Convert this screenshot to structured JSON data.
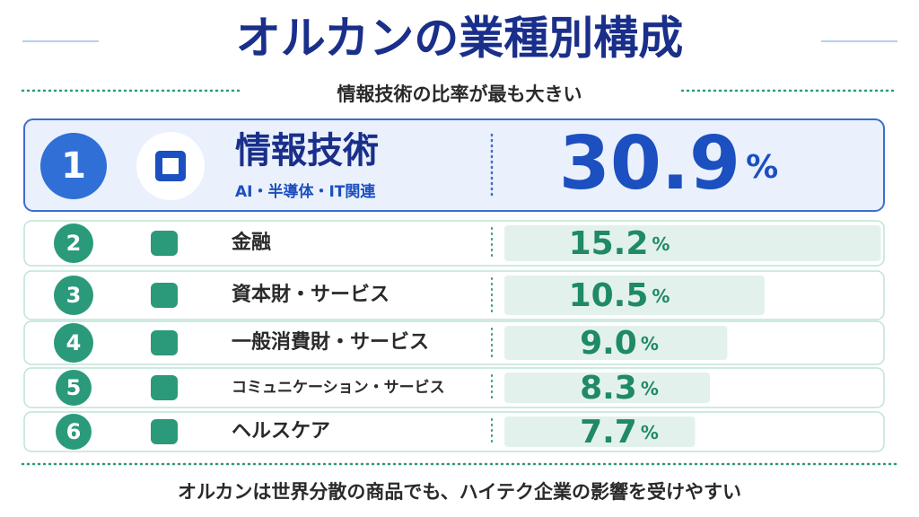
{
  "chart_data": {
    "type": "bar",
    "title": "オルカンの業種別構成",
    "subtitle": "情報技術の比率が最も大きい",
    "caption": "オルカンは世界分散の商品でも、ハイテク企業の影響を受けやすい",
    "ranks": [
      1,
      2,
      3,
      4,
      5,
      6
    ],
    "categories": [
      "情報技術",
      "金融",
      "資本財・サービス",
      "一般消費財・サービス",
      "コミュニケーション・サービス",
      "ヘルスケア"
    ],
    "highlight_note": "AI・半導体・IT関連",
    "values": [
      30.9,
      15.2,
      10.5,
      9.0,
      8.3,
      7.7
    ],
    "value_labels": [
      "30.9",
      "15.2",
      "10.5",
      "9.0",
      "8.3",
      "7.7"
    ],
    "unit": "%",
    "highlight_color": "#1c4fbf",
    "color": "#1f8a64"
  }
}
